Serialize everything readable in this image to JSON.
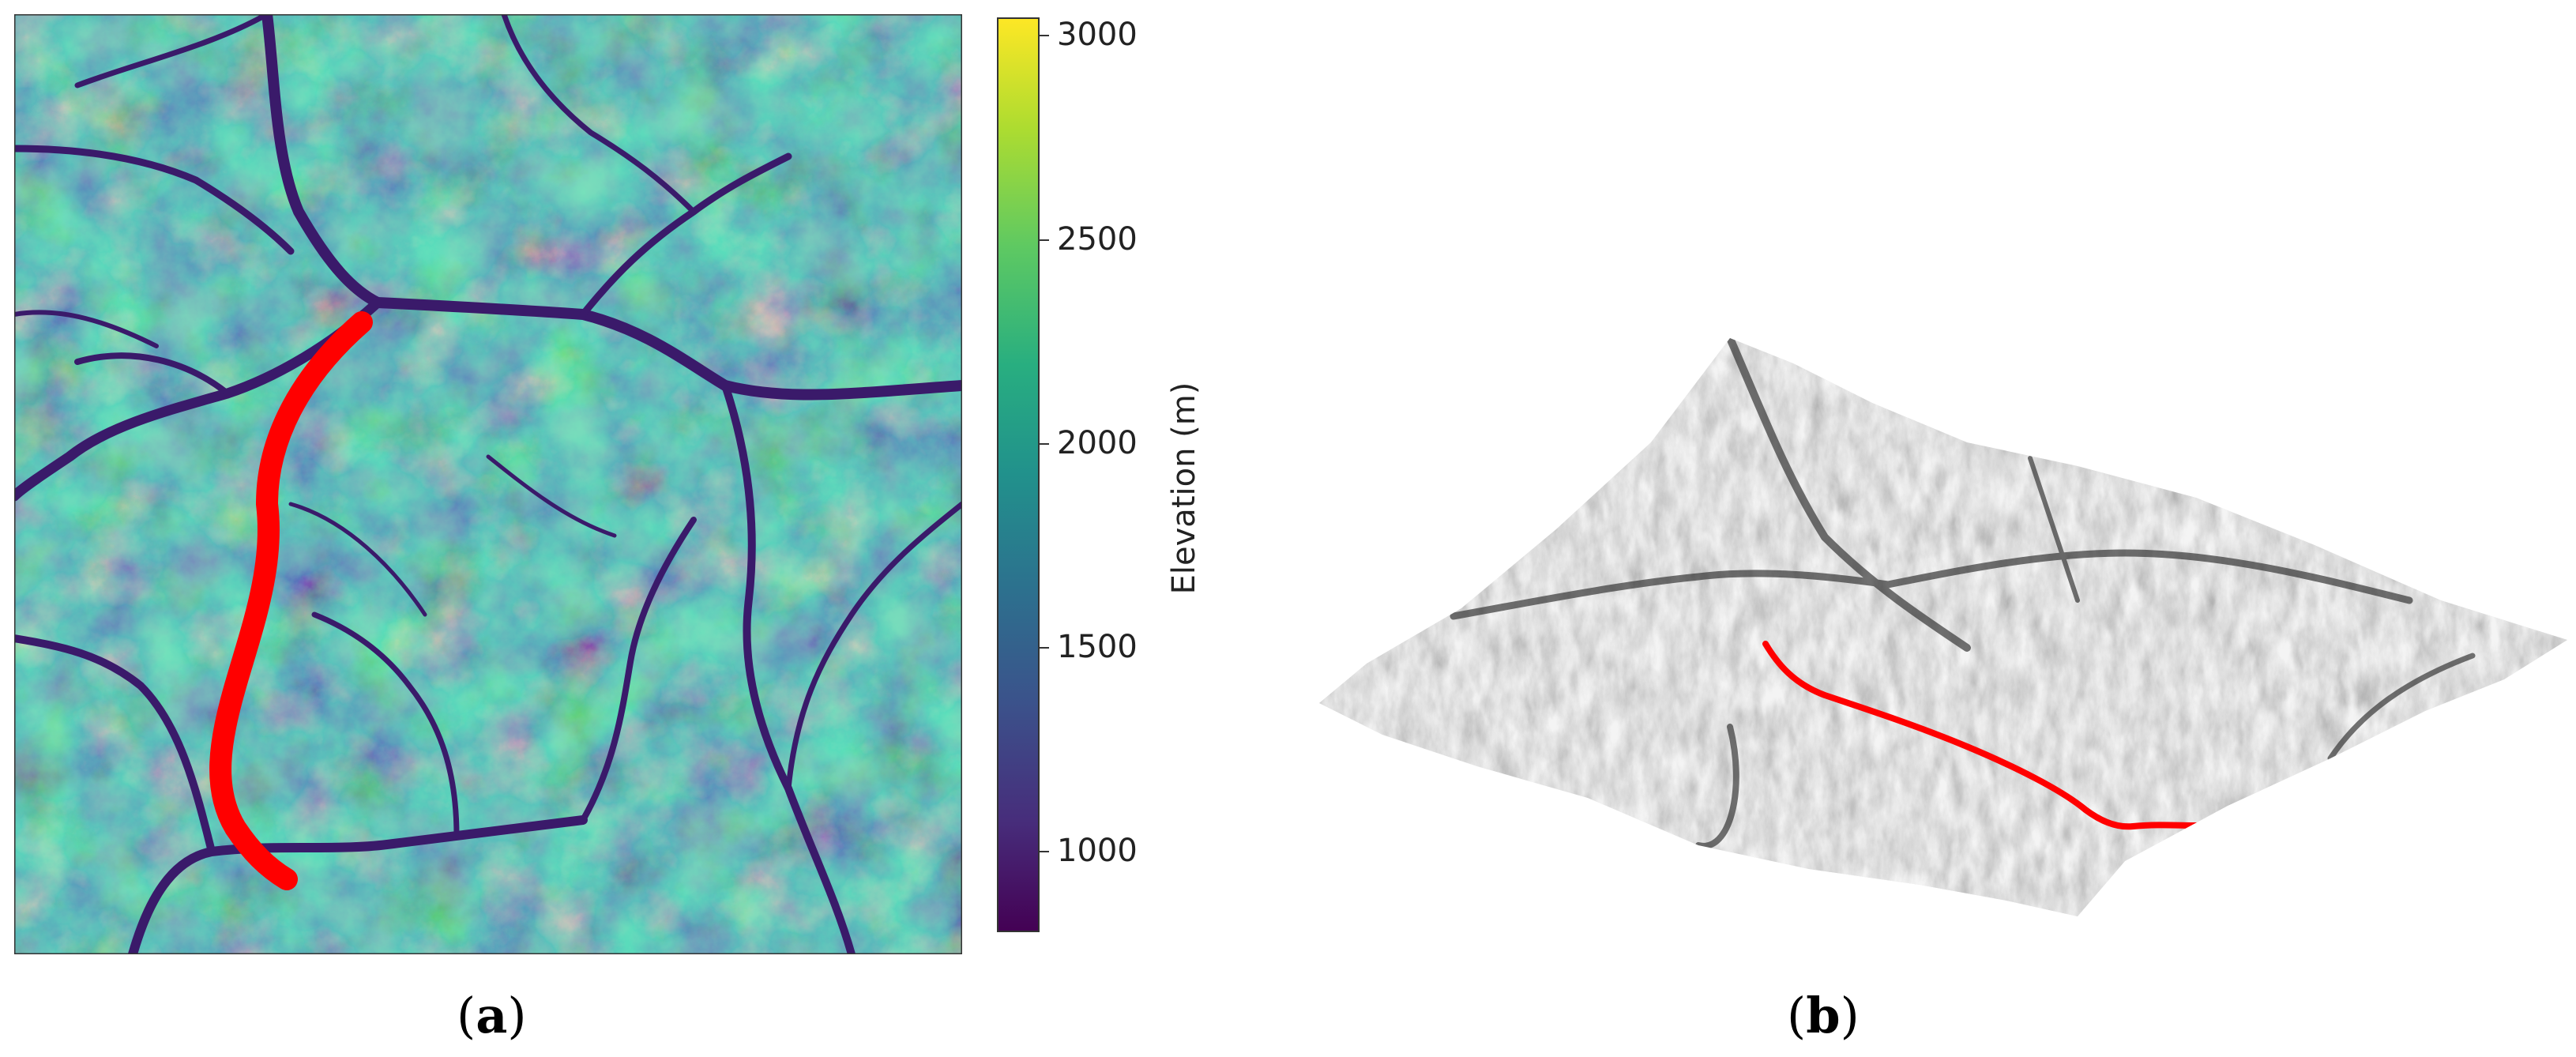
{
  "panel_a": {
    "label_letter": "a",
    "colorbar": {
      "label": "Elevation (m)",
      "ticks": [
        "3000",
        "2500",
        "2000",
        "1500",
        "1000"
      ],
      "tick_values": [
        3000,
        2500,
        2000,
        1500,
        1000
      ],
      "range": [
        800,
        3050
      ],
      "colormap": [
        "#440154",
        "#3b528b",
        "#21918c",
        "#5ec962",
        "#fde725"
      ]
    },
    "overlay_color": "#ff0000"
  },
  "panel_b": {
    "label_letter": "b",
    "surface_color_light": "#f2f2f2",
    "surface_color_dark": "#3a3a3a",
    "overlay_color": "#ff0000"
  }
}
